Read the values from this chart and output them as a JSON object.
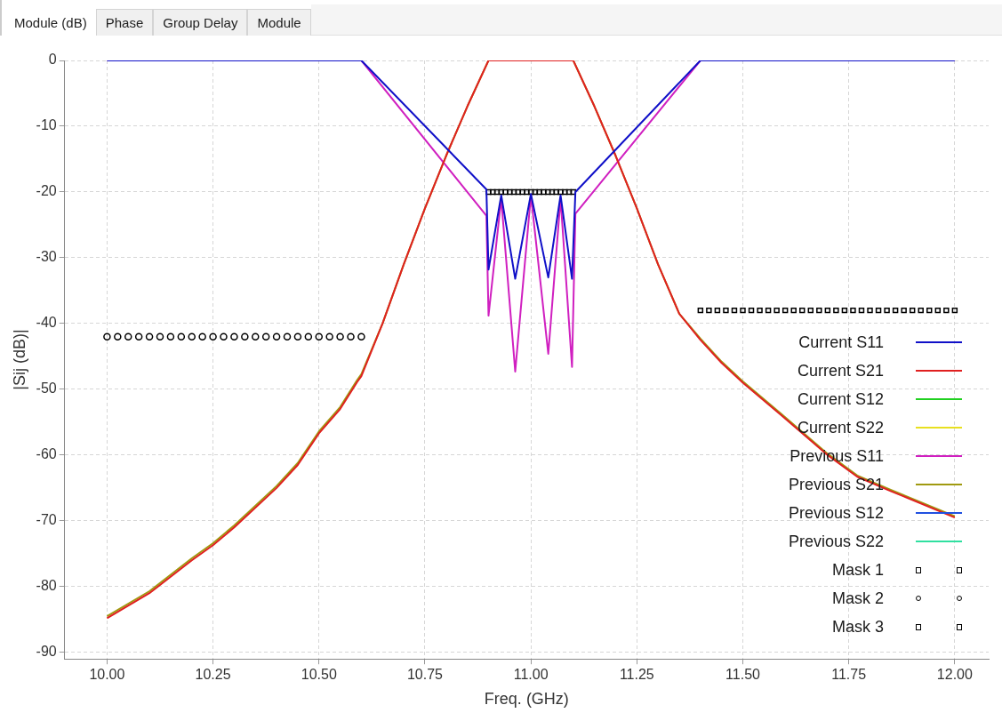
{
  "chart_data": {
    "type": "line",
    "xlabel": "Freq. (GHz)",
    "ylabel": "|Sij (dB)|",
    "annotations": [
      "Module (dB)",
      "Phase",
      "Group Delay",
      "Module"
    ],
    "xlim": [
      9.9,
      12.08
    ],
    "ylim": [
      -91,
      0
    ],
    "xticks": [
      {
        "value": 10,
        "label": "10.00"
      },
      {
        "value": 10.25,
        "label": "10.25"
      },
      {
        "value": 10.5,
        "label": "10.50"
      },
      {
        "value": 10.75,
        "label": "10.75"
      },
      {
        "value": 11,
        "label": "11.00"
      },
      {
        "value": 11.25,
        "label": "11.25"
      },
      {
        "value": 11.5,
        "label": "11.50"
      },
      {
        "value": 11.75,
        "label": "11.75"
      },
      {
        "value": 12,
        "label": "12.00"
      }
    ],
    "yticks": [
      -90,
      -80,
      -70,
      -60,
      -50,
      -40,
      -30,
      -20,
      -10,
      0
    ],
    "grid": true,
    "legend": "bottom right",
    "series": [
      {
        "name": "Current S11",
        "color": "#1010c8",
        "x": [
          10.0,
          10.6,
          10.895,
          10.9,
          10.93,
          10.963,
          11.0,
          11.041,
          11.07,
          11.097,
          11.105,
          11.4,
          12.0
        ],
        "values": [
          0,
          0,
          -19.6,
          -31.8,
          -20.5,
          -33.2,
          -20.3,
          -33,
          -20.5,
          -33.2,
          -20,
          0,
          0
        ]
      },
      {
        "name": "Current S21",
        "color": "#e02020",
        "x": [
          10.0,
          10.1,
          10.2,
          10.25,
          10.3,
          10.4,
          10.45,
          10.5,
          10.55,
          10.59,
          10.6,
          10.65,
          10.7,
          10.75,
          10.8,
          10.85,
          10.9,
          11.1,
          11.15,
          11.2,
          11.25,
          11.3,
          11.35,
          11.4,
          11.45,
          11.5,
          11.59,
          11.7,
          11.77,
          11.85,
          12.0
        ],
        "values": [
          -84.8,
          -81,
          -76,
          -73.7,
          -71,
          -65,
          -61.5,
          -56.7,
          -53,
          -48.9,
          -48,
          -40,
          -31,
          -22.5,
          -14.5,
          -7,
          0,
          0,
          -7,
          -14.5,
          -22.5,
          -31,
          -38.5,
          -42.5,
          -46,
          -49,
          -53.9,
          -60,
          -63.3,
          -65.5,
          -69.5
        ]
      },
      {
        "name": "Current S12",
        "color": "#20d020"
      },
      {
        "name": "Current S22",
        "color": "#e8e020"
      },
      {
        "name": "Previous S11",
        "color": "#d020c0",
        "x": [
          10.0,
          10.6,
          10.895,
          10.9,
          10.93,
          10.963,
          11.0,
          11.041,
          11.07,
          11.097,
          11.105,
          11.4,
          12.0
        ],
        "values": [
          0,
          0,
          -23.6,
          -38.8,
          -21,
          -47.3,
          -20.5,
          -44.6,
          -21,
          -46.6,
          -23.3,
          0,
          0
        ]
      },
      {
        "name": "Previous S21",
        "color": "#a09a10",
        "x": [
          10.0,
          10.1,
          10.2,
          10.25,
          10.3,
          10.4,
          10.45,
          10.5,
          10.55,
          10.59,
          10.6,
          10.65,
          10.7,
          10.75,
          10.8,
          10.85,
          10.9,
          11.1,
          11.15,
          11.2,
          11.25,
          11.3,
          11.35,
          11.4,
          11.45,
          11.5,
          11.59,
          11.7,
          11.77,
          11.85,
          12.0
        ],
        "values": [
          -84.5,
          -80.7,
          -75.7,
          -73.4,
          -70.7,
          -64.7,
          -61.2,
          -56.4,
          -52.7,
          -48.6,
          -47.7,
          -40,
          -31,
          -22.5,
          -14.5,
          -7,
          0,
          0,
          -7,
          -14.5,
          -22.5,
          -31,
          -38.5,
          -42.3,
          -45.8,
          -48.8,
          -53.7,
          -59.8,
          -63.1,
          -65.3,
          -69.3
        ]
      },
      {
        "name": "Previous S12",
        "color": "#2050e0"
      },
      {
        "name": "Previous S22",
        "color": "#30e0a0"
      },
      {
        "name": "Mask 1",
        "color": "#000000",
        "type": "scatter",
        "marker": "square",
        "x": [
          10.9,
          10.91,
          10.92,
          10.93,
          10.94,
          10.95,
          10.96,
          10.97,
          10.98,
          10.99,
          11.0,
          11.01,
          11.02,
          11.03,
          11.04,
          11.05,
          11.06,
          11.07,
          11.08,
          11.09,
          11.1
        ],
        "values": [
          -20,
          -20,
          -20,
          -20,
          -20,
          -20,
          -20,
          -20,
          -20,
          -20,
          -20,
          -20,
          -20,
          -20,
          -20,
          -20,
          -20,
          -20,
          -20,
          -20,
          -20
        ]
      },
      {
        "name": "Mask 2",
        "color": "#000000",
        "type": "scatter",
        "marker": "circle",
        "x": [
          10.0,
          10.025,
          10.05,
          10.075,
          10.1,
          10.125,
          10.15,
          10.175,
          10.2,
          10.225,
          10.25,
          10.275,
          10.3,
          10.325,
          10.35,
          10.375,
          10.4,
          10.425,
          10.45,
          10.475,
          10.5,
          10.525,
          10.55,
          10.575,
          10.6
        ],
        "values": [
          -42,
          -42,
          -42,
          -42,
          -42,
          -42,
          -42,
          -42,
          -42,
          -42,
          -42,
          -42,
          -42,
          -42,
          -42,
          -42,
          -42,
          -42,
          -42,
          -42,
          -42,
          -42,
          -42,
          -42,
          -42
        ]
      },
      {
        "name": "Mask 3",
        "color": "#000000",
        "type": "scatter",
        "marker": "square",
        "x": [
          11.4,
          11.42,
          11.44,
          11.46,
          11.48,
          11.5,
          11.52,
          11.54,
          11.56,
          11.58,
          11.6,
          11.62,
          11.64,
          11.66,
          11.68,
          11.7,
          11.72,
          11.74,
          11.76,
          11.78,
          11.8,
          11.82,
          11.84,
          11.86,
          11.88,
          11.9,
          11.92,
          11.94,
          11.96,
          11.98,
          12.0
        ],
        "values": [
          -38,
          -38,
          -38,
          -38,
          -38,
          -38,
          -38,
          -38,
          -38,
          -38,
          -38,
          -38,
          -38,
          -38,
          -38,
          -38,
          -38,
          -38,
          -38,
          -38,
          -38,
          -38,
          -38,
          -38,
          -38,
          -38,
          -38,
          -38,
          -38,
          -38,
          -38
        ]
      }
    ]
  }
}
